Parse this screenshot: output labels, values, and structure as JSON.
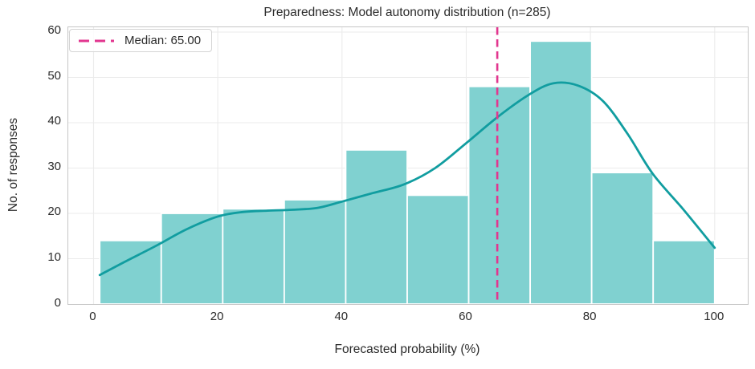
{
  "chart_data": {
    "type": "bar",
    "subtype": "histogram-with-kde",
    "title": "Preparedness: Model autonomy distribution (n=285)",
    "xlabel": "Forecasted probability (%)",
    "ylabel": "No. of responses",
    "n_responses": 285,
    "bin_edges": [
      1,
      10.9,
      20.8,
      30.7,
      40.6,
      50.5,
      60.4,
      70.3,
      80.2,
      90.1,
      100
    ],
    "counts": [
      14,
      20,
      21,
      23,
      34,
      24,
      48,
      58,
      29,
      14
    ],
    "kde_curve": {
      "x": [
        1,
        5,
        10,
        15,
        20,
        24,
        28,
        32,
        36,
        40,
        45,
        50,
        55,
        60,
        65,
        70,
        74,
        78,
        82,
        86,
        90,
        95,
        100
      ],
      "y": [
        6.4,
        9.3,
        12.8,
        16.5,
        19.3,
        20.3,
        20.6,
        20.8,
        21.2,
        22.6,
        24.5,
        26.4,
        30.0,
        35.5,
        41.2,
        46.1,
        48.7,
        48.2,
        44.8,
        37.5,
        28.8,
        20.8,
        12.4
      ]
    },
    "median": 65.0,
    "legend_label": "Median: 65.00",
    "x_ticks": [
      0,
      20,
      40,
      60,
      80,
      100
    ],
    "y_ticks": [
      0,
      10,
      20,
      30,
      40,
      50,
      60
    ],
    "xlim": [
      -4.07,
      105.33
    ],
    "ylim": [
      0,
      61.06
    ],
    "grid": true,
    "legend_position": "upper-left",
    "colors": {
      "bar_fill": "#80d1d0",
      "bar_edge": "#ffffff",
      "kde_line": "#119da0",
      "median_line": "#e2368f",
      "grid_line": "#ebebeb",
      "spine": "#c6c6c6",
      "text": "#2b2b2b",
      "background": "#ffffff"
    }
  }
}
